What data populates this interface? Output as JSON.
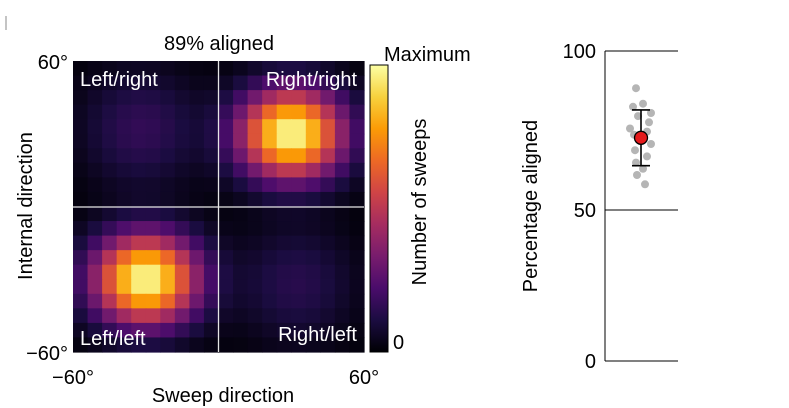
{
  "chart_data": [
    {
      "type": "heatmap",
      "title": "89% aligned",
      "xlabel": "Sweep direction",
      "ylabel": "Internal direction",
      "x_ticks": [
        "−60°",
        "60°"
      ],
      "y_ticks": [
        "60°",
        "−60°"
      ],
      "xlim": [
        -60,
        60
      ],
      "ylim": [
        -60,
        60
      ],
      "grid_size": 20,
      "dividers": {
        "x": 0,
        "y": 0
      },
      "quadrants": {
        "top_left": "Left/right",
        "top_right": "Right/right",
        "bottom_left": "Left/left",
        "bottom_right": "Right/left"
      },
      "blobs": [
        {
          "x": 30,
          "y": 30,
          "amplitude": 1.0,
          "sigma_x": 14,
          "sigma_y": 12
        },
        {
          "x": -30,
          "y": -30,
          "amplitude": 1.0,
          "sigma_x": 14,
          "sigma_y": 12
        },
        {
          "x": -32,
          "y": 32,
          "amplitude": 0.12,
          "sigma_x": 16,
          "sigma_y": 16
        },
        {
          "x": 32,
          "y": -32,
          "amplitude": 0.1,
          "sigma_x": 16,
          "sigma_y": 16
        }
      ],
      "colorbar": {
        "label": "Number of sweeps",
        "max_label": "Maximum",
        "min_label": "0",
        "colormap": "inferno",
        "stops": [
          "#000004",
          "#1b0c41",
          "#4a0c6b",
          "#781c6d",
          "#a52c60",
          "#cf4446",
          "#ed6925",
          "#fb9b06",
          "#f7d13d",
          "#fcffa4"
        ]
      }
    },
    {
      "type": "scatter",
      "ylabel": "Percentage aligned",
      "ylim": [
        0,
        100
      ],
      "y_ticks": [
        "0",
        "50",
        "100"
      ],
      "points": [
        88,
        83,
        82,
        80,
        79,
        77,
        75,
        74,
        73,
        70,
        68,
        66,
        64,
        62,
        60,
        57
      ],
      "mean": 72,
      "error_low": 63,
      "error_high": 81,
      "point_color": "#b5b5b5",
      "mean_color": "#e41a1c"
    }
  ]
}
